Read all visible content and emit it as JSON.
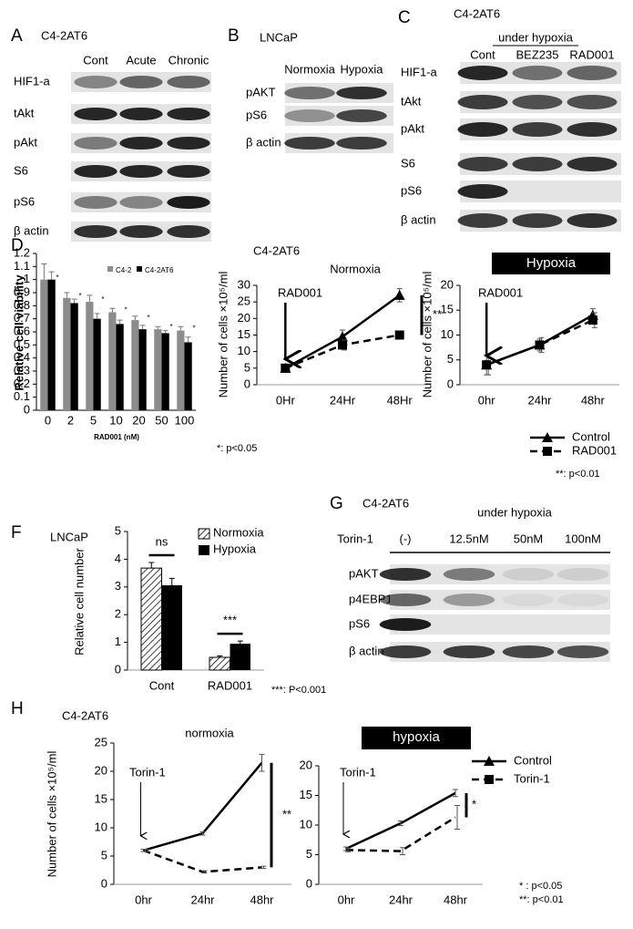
{
  "blots": [
    {
      "panel": "A",
      "subtitle": "C4-2AT6",
      "columns": [
        "Cont",
        "Acute",
        "Chronic"
      ],
      "rows": [
        "HIF1-a",
        "tAkt",
        "pAkt",
        "S6",
        "pS6",
        "β actin"
      ]
    },
    {
      "panel": "B",
      "subtitle": "LNCaP",
      "columns": [
        "Normoxia",
        "Hypoxia"
      ],
      "rows": [
        "pAKT",
        "pS6",
        "β actin"
      ]
    },
    {
      "panel": "C",
      "subtitle": "C4-2AT6",
      "condition": "under hypoxia",
      "columns": [
        "Cont",
        "BEZ235",
        "RAD001"
      ],
      "rows": [
        "HIF1-a",
        "tAkt",
        "pAkt",
        "S6",
        "pS6",
        "β actin"
      ]
    },
    {
      "panel": "G",
      "subtitle": "C4-2AT6",
      "condition": "under hypoxia",
      "treatment": "Torin-1",
      "columns": [
        "(-)",
        "12.5nM",
        "50nM",
        "100nM"
      ],
      "rows": [
        "pAKT",
        "p4EBP1",
        "pS6",
        "β actin"
      ]
    }
  ],
  "chart_data": [
    {
      "type": "bar",
      "panel": "D",
      "ylabel": "Relative cell viability",
      "xlabel": "RAD001 (nM)",
      "note": "*: p<0.05",
      "categories": [
        "0",
        "2",
        "5",
        "10",
        "20",
        "50",
        "100"
      ],
      "series": [
        {
          "name": "C4-2",
          "color": "#8c8c8c",
          "values": [
            1,
            0.86,
            0.83,
            0.75,
            0.69,
            0.62,
            0.61
          ],
          "errors": [
            0.12,
            0.04,
            0.05,
            0.03,
            0.03,
            0.02,
            0.03
          ]
        },
        {
          "name": "C4-2AT6",
          "color": "#000000",
          "values": [
            1,
            0.82,
            0.7,
            0.66,
            0.62,
            0.59,
            0.52
          ],
          "errors": [
            0.06,
            0.03,
            0.04,
            0.03,
            0.03,
            0.02,
            0.04
          ]
        }
      ],
      "significance": [
        "*",
        "*",
        "*",
        "*",
        "*",
        "*",
        "*"
      ],
      "ylim": [
        0,
        1.2
      ],
      "yticks": [
        0,
        0.1,
        0.2,
        0.3,
        0.4,
        0.5,
        0.6,
        0.7,
        0.8,
        0.9,
        1,
        1.1,
        1.2
      ],
      "legend": "top-right"
    },
    {
      "type": "line",
      "subtitle": "C4-2AT6",
      "title": "Normoxia",
      "ylabel": "Number of cells ×10⁵/ml",
      "arrow_label": "RAD001",
      "significance": "**",
      "categories": [
        "0Hr",
        "24Hr",
        "48Hr"
      ],
      "series": [
        {
          "color": "#000000",
          "values": [
            5,
            14.5,
            27
          ],
          "errors": [
            0.5,
            2,
            2
          ],
          "dash": false
        },
        {
          "color": "#000000",
          "values": [
            5,
            12,
            15
          ],
          "errors": [
            0.5,
            1.5,
            0.5
          ],
          "dash": true
        }
      ],
      "markers": true,
      "ylim": [
        0,
        30
      ],
      "yticks": [
        0,
        5,
        10,
        15,
        20,
        25,
        30
      ]
    },
    {
      "type": "line",
      "title": "Hypoxia",
      "ylabel": "Number of cells ×10⁵/ml",
      "arrow_label": "RAD001",
      "note": "**: p<0.01",
      "categories": [
        "0hr",
        "24hr",
        "48hr"
      ],
      "series": [
        {
          "name": "Control",
          "color": "#000000",
          "values": [
            4,
            8,
            14
          ],
          "errors": [
            2,
            1.2,
            1.3
          ],
          "dash": false
        },
        {
          "name": "RAD001",
          "color": "#000000",
          "values": [
            4,
            8,
            13
          ],
          "errors": [
            2,
            1.5,
            1.5
          ],
          "dash": true
        }
      ],
      "markers": true,
      "ylim": [
        0,
        20
      ],
      "yticks": [
        0,
        5,
        10,
        15,
        20
      ],
      "legend": "bottom"
    },
    {
      "type": "bar",
      "panel": "F",
      "subtitle": "LNCaP",
      "ylabel": "Relative cell number",
      "note": "***: P<0.001",
      "annotations": [
        "ns",
        "***"
      ],
      "categories": [
        "Cont",
        "RAD001"
      ],
      "series": [
        {
          "name": "Normoxia",
          "color": "#000000",
          "fill": "hatch",
          "values": [
            3.68,
            0.46
          ],
          "errors": [
            0.2,
            0.05
          ]
        },
        {
          "name": "Hypoxia",
          "color": "#000000",
          "values": [
            3.06,
            0.95
          ],
          "errors": [
            0.25,
            0.1
          ]
        }
      ],
      "ylim": [
        0,
        5
      ],
      "yticks": [
        0,
        1,
        2,
        3,
        4,
        5
      ],
      "legend": "top-right"
    },
    {
      "type": "line",
      "panel": "H",
      "subtitle": "C4-2AT6",
      "title": "normoxia",
      "ylabel": "Number of cells  ×10⁵/ml",
      "arrow_label": "Torin-1",
      "significance": "**",
      "categories": [
        "0hr",
        "24hr",
        "48hr"
      ],
      "series": [
        {
          "color": "#000000",
          "values": [
            6,
            9,
            21.5
          ],
          "errors": [
            0.2,
            0.3,
            1.5
          ],
          "dash": false
        },
        {
          "color": "#000000",
          "values": [
            6,
            2.2,
            3
          ],
          "errors": [
            0.2,
            0.2,
            0.2
          ],
          "dash": true
        }
      ],
      "markers": false,
      "ylim": [
        0,
        25
      ],
      "yticks": [
        0,
        5,
        10,
        15,
        20,
        25
      ]
    },
    {
      "type": "line",
      "title": "hypoxia",
      "arrow_label": "Torin-1",
      "significance": "*",
      "notes": [
        "*  : p<0.05",
        "**: p<0.01"
      ],
      "categories": [
        "0hr",
        "24hr",
        "48hr"
      ],
      "series": [
        {
          "name": "Control",
          "color": "#000000",
          "values": [
            6,
            10.3,
            15.4
          ],
          "errors": [
            0.3,
            0.4,
            0.6
          ],
          "dash": false
        },
        {
          "name": "Torin-1",
          "color": "#000000",
          "values": [
            5.8,
            5.6,
            11.3
          ],
          "errors": [
            0.3,
            0.6,
            2
          ],
          "dash": true
        }
      ],
      "markers": false,
      "ylim": [
        0,
        20
      ],
      "yticks": [
        0,
        5,
        10,
        15,
        20
      ],
      "legend": "top-right"
    }
  ]
}
